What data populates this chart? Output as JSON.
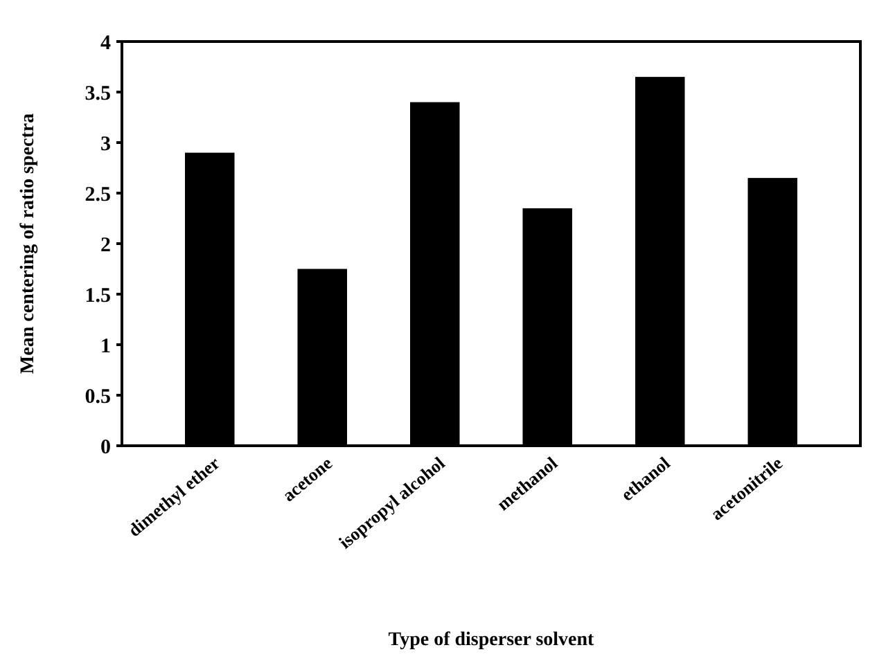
{
  "chart_data": {
    "type": "bar",
    "xlabel": "Type of disperser solvent",
    "ylabel": "Mean centering of ratio spectra",
    "categories": [
      "dimethyl ether",
      "acetone",
      "isopropyl alcohol",
      "methanol",
      "ethanol",
      "acetonitrile"
    ],
    "values": [
      2.9,
      1.75,
      3.4,
      2.35,
      3.65,
      2.65
    ],
    "color": "#000000",
    "ylim": [
      0,
      4
    ],
    "yticks": [
      0,
      0.5,
      1,
      1.5,
      2,
      2.5,
      3,
      3.5,
      4
    ]
  }
}
